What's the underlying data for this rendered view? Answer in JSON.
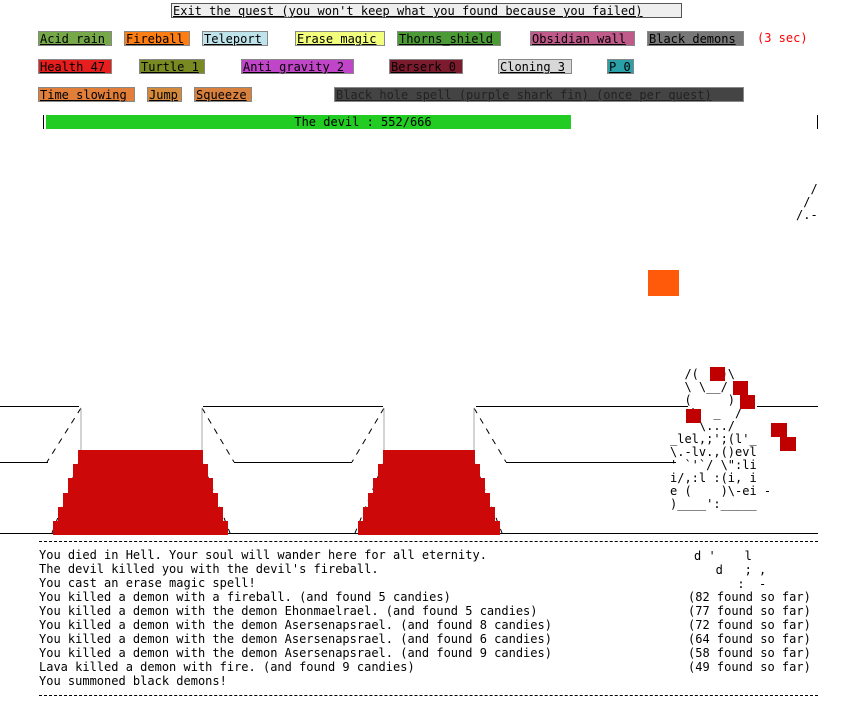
{
  "colors": {
    "acid_rain": "#76a84a",
    "fireball": "#ff7e14",
    "teleport": "#bfe3ea",
    "erase_magic": "#f2ff7c",
    "thorns_shield": "#4c9a36",
    "obsidian_wall": "#c05a8a",
    "black_demons": "#777777",
    "health": "#e61e1e",
    "turtle": "#7a8a22",
    "anti_gravity": "#c045c8",
    "berserk": "#7c1a2e",
    "cloning": "#d8d8d8",
    "p": "#2aa0a8",
    "time_slowing": "#e07e3a",
    "jump": "#d48a3a",
    "squeeze": "#d8803e",
    "black_hole": "#444444",
    "hp_bar": "#22cc22",
    "lava": "#cc0808",
    "orange_block": "#ff5a0a",
    "timer_text": "#ff0000"
  },
  "exit_button": "Exit the quest (you won't keep what you found because you failed)",
  "spells": {
    "acid_rain": "Acid rain",
    "fireball": "Fireball",
    "teleport": "Teleport",
    "erase_magic": "Erase magic",
    "thorns_shield": "Thorns_shield",
    "obsidian_wall": "Obsidian wall",
    "black_demons": "Black demons",
    "timer": "(3 sec)",
    "health": "Health 47",
    "turtle": "Turtle 1",
    "anti_gravity": "Anti gravity 2",
    "berserk": "Berserk 0",
    "cloning": "Cloning 3",
    "p": "P 0",
    "time_slowing": "Time slowing",
    "jump": "Jump",
    "squeeze": "Squeeze",
    "black_hole": "Black hole spell (purple shark fin) (once per quest)"
  },
  "boss": {
    "label": "The devil : 552/666",
    "hp_current": 552,
    "hp_max": 666
  },
  "devil_ascii": "  /(   )\\\n  \\ \\__/ /\n  (     )\n   \\  _  /\n    \\.../\n_lel,;';(l'_\n\\.-lv.,()evl\n' `'`/ \\\":li\ni/,:l :(i, i\ne (    )\\-ei -\n)____':_____",
  "devil_ascii_below": "d '    l\n   d   ; ,\n      :  -",
  "top_right_ascii": "  /\n /\n/.-",
  "log_lines": [
    "You died in Hell. Your soul will wander here for all eternity.",
    "The devil killed you with the devil's fireball.",
    "You cast an erase magic spell!",
    "You killed a demon with a fireball. (and found 5 candies)",
    "You killed a demon with the demon Ehonmaelrael. (and found 5 candies)",
    "You killed a demon with the demon Asersenapsrael. (and found 8 candies)",
    "You killed a demon with the demon Asersenapsrael. (and found 6 candies)",
    "You killed a demon with the demon Asersenapsrael. (and found 9 candies)",
    "Lava killed a demon with fire. (and found 9 candies)",
    "You summoned black demons!"
  ],
  "log_right": [
    "",
    "",
    "",
    "(82 found so far)",
    "(77 found so far)",
    "(72 found so far)",
    "(64 found so far)",
    "(58 found so far)",
    "(49 found so far)",
    ""
  ]
}
